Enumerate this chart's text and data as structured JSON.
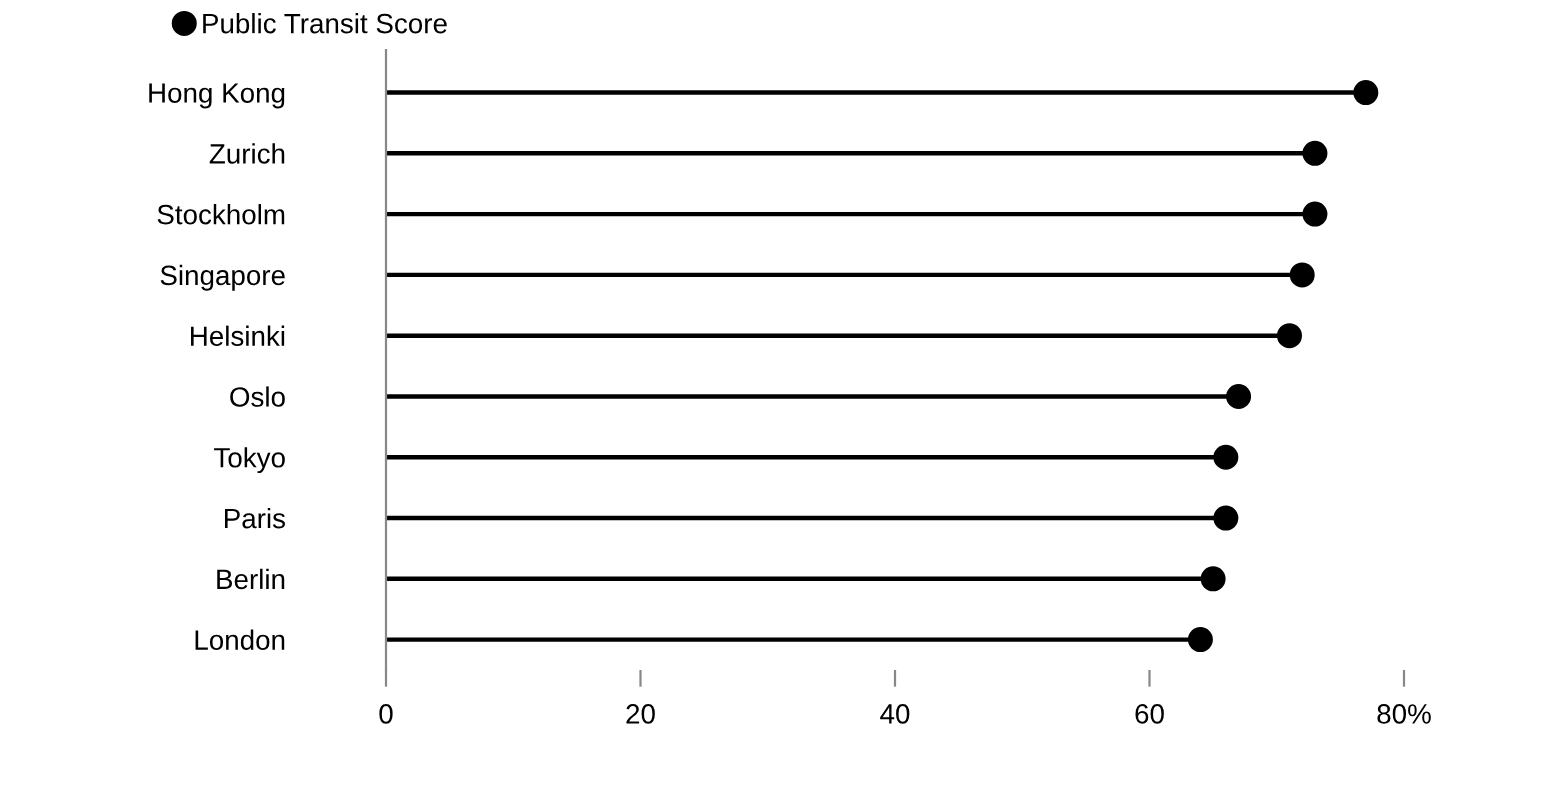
{
  "chart_data": {
    "type": "lollipop",
    "orientation": "horizontal",
    "categories": [
      "Hong Kong",
      "Zurich",
      "Stockholm",
      "Singapore",
      "Helsinki",
      "Oslo",
      "Tokyo",
      "Paris",
      "Berlin",
      "London"
    ],
    "series": [
      {
        "name": "Public Transit Score",
        "color": "#000000",
        "values": [
          77,
          73,
          73,
          72,
          71,
          67,
          66,
          66,
          65,
          64
        ]
      }
    ],
    "xlim": [
      0,
      80
    ],
    "xticks": [
      0,
      20,
      40,
      60,
      {
        "value": 80,
        "label": "80%"
      }
    ],
    "legend": "top left",
    "marker": "circle",
    "grid": false
  }
}
